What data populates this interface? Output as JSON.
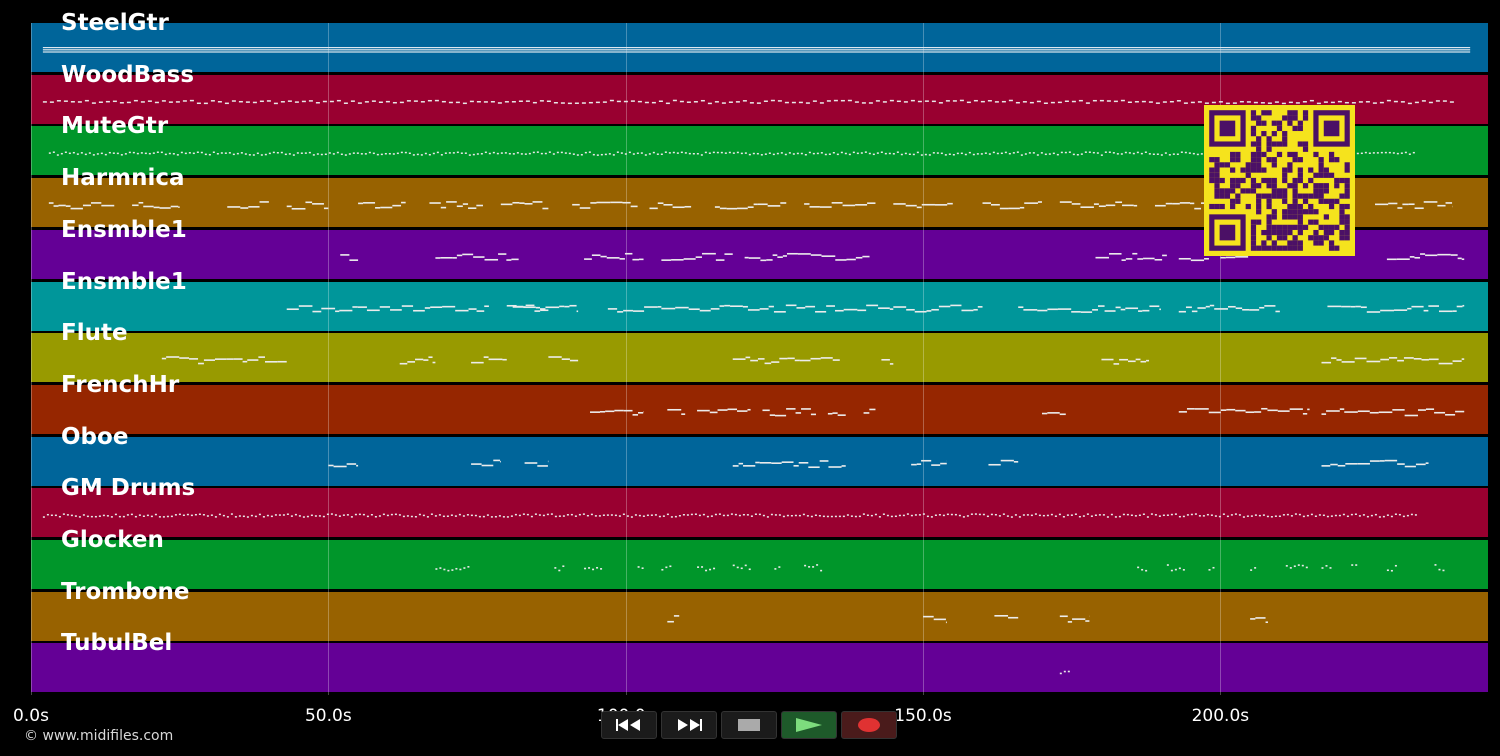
{
  "timeline": {
    "max_seconds": 245,
    "ticks": [
      {
        "value": 0,
        "label": "0.0s"
      },
      {
        "value": 50,
        "label": "50.0s"
      },
      {
        "value": 100,
        "label": "100.0s"
      },
      {
        "value": 150,
        "label": "150.0s"
      },
      {
        "value": 200,
        "label": "200.0s"
      }
    ]
  },
  "tracks": [
    {
      "name": "SteelGtr",
      "color": "#00659a",
      "segments": [
        [
          2,
          242
        ]
      ],
      "density": "dense"
    },
    {
      "name": "WoodBass",
      "color": "#990030",
      "segments": [
        [
          2,
          239
        ]
      ],
      "density": "dashed"
    },
    {
      "name": "MuteGtr",
      "color": "#00962a",
      "segments": [
        [
          3,
          233
        ]
      ],
      "density": "dotted"
    },
    {
      "name": "Harmnica",
      "color": "#986200",
      "segments": [
        [
          3,
          14
        ],
        [
          17,
          25
        ],
        [
          33,
          40
        ],
        [
          43,
          50
        ],
        [
          55,
          63
        ],
        [
          67,
          76
        ],
        [
          79,
          87
        ],
        [
          91,
          102
        ],
        [
          104,
          111
        ],
        [
          115,
          127
        ],
        [
          130,
          142
        ],
        [
          145,
          155
        ],
        [
          160,
          170
        ],
        [
          173,
          186
        ],
        [
          189,
          198
        ],
        [
          205,
          215
        ],
        [
          226,
          239
        ]
      ],
      "density": "phrase"
    },
    {
      "name": "Ensmble1",
      "color": "#640096",
      "segments": [
        [
          52,
          55
        ],
        [
          68,
          82
        ],
        [
          93,
          103
        ],
        [
          106,
          118
        ],
        [
          120,
          141
        ],
        [
          179,
          191
        ],
        [
          193,
          206
        ],
        [
          228,
          241
        ]
      ],
      "density": "phrase"
    },
    {
      "name": "Ensmble1",
      "color": "#00969a",
      "segments": [
        [
          43,
          77
        ],
        [
          81,
          87
        ],
        [
          80,
          92
        ],
        [
          97,
          106
        ],
        [
          106,
          145
        ],
        [
          145,
          160
        ],
        [
          166,
          190
        ],
        [
          193,
          210
        ],
        [
          218,
          241
        ]
      ],
      "density": "phrase"
    },
    {
      "name": "Flute",
      "color": "#989a00",
      "segments": [
        [
          22,
          43
        ],
        [
          62,
          68
        ],
        [
          74,
          80
        ],
        [
          87,
          92
        ],
        [
          118,
          136
        ],
        [
          143,
          145
        ],
        [
          180,
          188
        ],
        [
          217,
          241
        ]
      ],
      "density": "phrase"
    },
    {
      "name": "FrenchHr",
      "color": "#962600",
      "segments": [
        [
          94,
          103
        ],
        [
          107,
          110
        ],
        [
          112,
          121
        ],
        [
          123,
          132
        ],
        [
          134,
          137
        ],
        [
          140,
          142
        ],
        [
          170,
          174
        ],
        [
          193,
          215
        ],
        [
          217,
          241
        ]
      ],
      "density": "phrase"
    },
    {
      "name": "Oboe",
      "color": "#00659a",
      "segments": [
        [
          50,
          55
        ],
        [
          74,
          79
        ],
        [
          83,
          87
        ],
        [
          118,
          137
        ],
        [
          148,
          154
        ],
        [
          161,
          166
        ],
        [
          217,
          235
        ]
      ],
      "density": "phrase"
    },
    {
      "name": "GM Drums",
      "color": "#990030",
      "segments": [
        [
          2,
          233
        ]
      ],
      "density": "dotted"
    },
    {
      "name": "Glocken",
      "color": "#00962a",
      "segments": [
        [
          68,
          74
        ],
        [
          88,
          90
        ],
        [
          93,
          96
        ],
        [
          102,
          103
        ],
        [
          106,
          108
        ],
        [
          112,
          115
        ],
        [
          118,
          121
        ],
        [
          125,
          126
        ],
        [
          130,
          133
        ],
        [
          186,
          188
        ],
        [
          191,
          194
        ],
        [
          198,
          199
        ],
        [
          205,
          206
        ],
        [
          211,
          215
        ],
        [
          217,
          219
        ],
        [
          222,
          223
        ],
        [
          228,
          230
        ],
        [
          236,
          238
        ]
      ],
      "density": "sparse"
    },
    {
      "name": "Trombone",
      "color": "#986200",
      "segments": [
        [
          107,
          109
        ],
        [
          150,
          154
        ],
        [
          162,
          166
        ],
        [
          173,
          178
        ],
        [
          205,
          208
        ]
      ],
      "density": "phrase"
    },
    {
      "name": "TubulBel",
      "color": "#640096",
      "segments": [
        [
          173,
          175
        ]
      ],
      "density": "sparse"
    }
  ],
  "transport": {
    "rewind_icon": "rewind-icon",
    "forward_icon": "fast-forward-icon",
    "stop_icon": "stop-icon",
    "play_icon": "play-icon",
    "record_icon": "record-icon"
  },
  "footer": {
    "copyright": "© www.midifiles.com"
  },
  "qr": {
    "icon": "qr-code-icon"
  }
}
